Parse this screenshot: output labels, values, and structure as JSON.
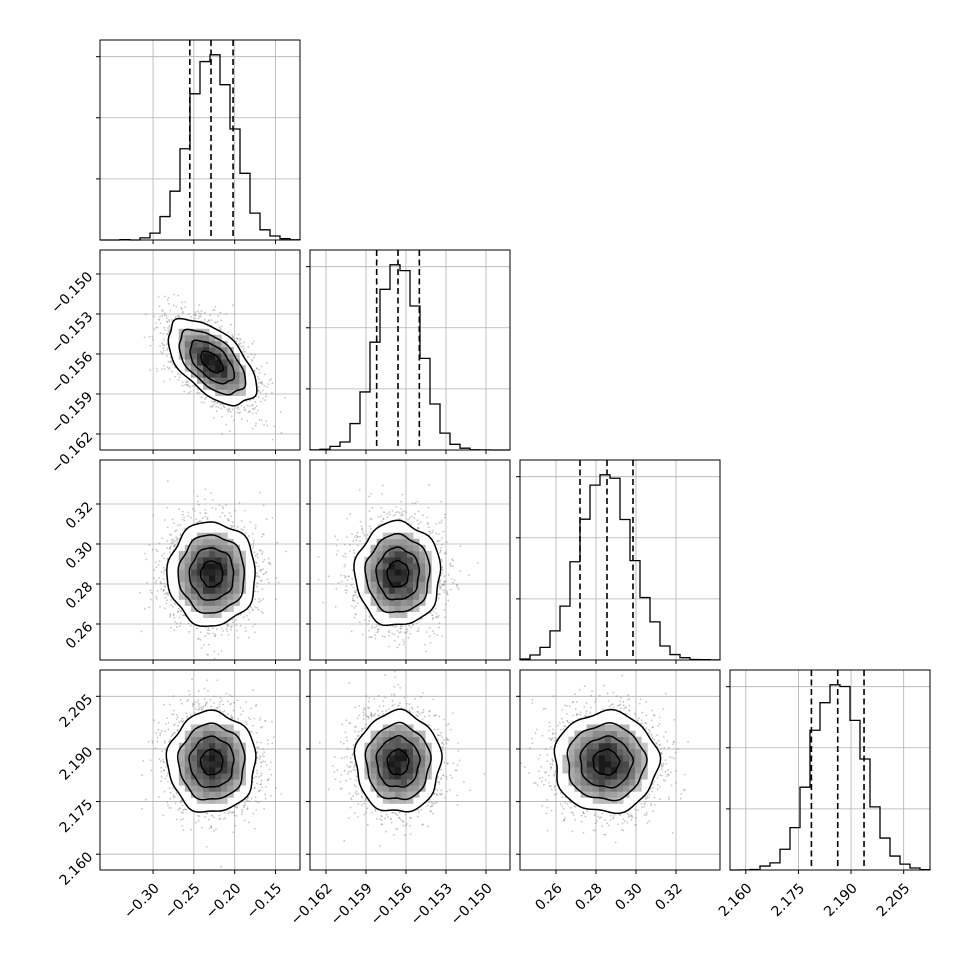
{
  "chart_data": {
    "type": "corner",
    "title": "",
    "parameters": [
      {
        "mean": -0.228,
        "std": 0.027,
        "range": [
          -0.365,
          -0.12
        ],
        "ticks": [
          -0.3,
          -0.25,
          -0.2,
          -0.15
        ],
        "tick_labels": [
          "−0.30",
          "−0.25",
          "−0.20",
          "−0.15"
        ],
        "quantiles": [
          -0.255,
          -0.229,
          -0.202
        ]
      },
      {
        "mean": -0.1566,
        "std": 0.0016,
        "range": [
          -0.1632,
          -0.1482
        ],
        "ticks": [
          -0.162,
          -0.159,
          -0.156,
          -0.153,
          -0.15
        ],
        "tick_labels": [
          "−0.162",
          "−0.159",
          "−0.156",
          "−0.153",
          "−0.150"
        ],
        "quantiles": [
          -0.1582,
          -0.1566,
          -0.155
        ]
      },
      {
        "mean": 0.285,
        "std": 0.013,
        "range": [
          0.242,
          0.342
        ],
        "ticks": [
          0.26,
          0.28,
          0.3,
          0.32
        ],
        "tick_labels": [
          "0.26",
          "0.28",
          "0.30",
          "0.32"
        ],
        "quantiles": [
          0.272,
          0.2855,
          0.2985
        ]
      },
      {
        "mean": 2.1862,
        "std": 0.0072,
        "range": [
          2.1555,
          2.2125
        ],
        "ticks": [
          2.16,
          2.175,
          2.19,
          2.205
        ],
        "tick_labels": [
          "2.160",
          "2.175",
          "2.190",
          "2.205"
        ],
        "quantiles": [
          2.1787,
          2.1862,
          2.1937
        ]
      }
    ],
    "correlations": [
      [
        1.0,
        -0.55,
        0.0,
        0.0
      ],
      [
        -0.55,
        1.0,
        0.0,
        0.0
      ],
      [
        0.0,
        0.0,
        1.0,
        0.0
      ],
      [
        0.0,
        0.0,
        0.0,
        1.0
      ]
    ],
    "histogram_bins": 20,
    "contour_levels_sigma": [
      0.5,
      1.0,
      1.5,
      2.0
    ],
    "grid": true,
    "colors": {
      "line": "#000000",
      "points": "#808080",
      "density_max": "#000000"
    }
  }
}
